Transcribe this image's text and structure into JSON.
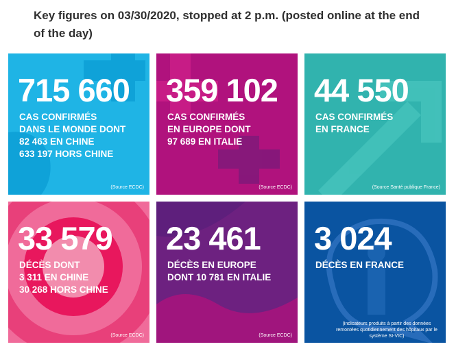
{
  "heading": "Key figures on 03/30/2020, stopped at 2 p.m. (posted online at the end of the day)",
  "cards": [
    {
      "number": "715 660",
      "lines": [
        "CAS CONFIRMÉS",
        "DANS LE MONDE DONT",
        "82 463 EN CHINE",
        "633 197 HORS CHINE"
      ],
      "source": "(Source ECDC)",
      "color": "#1fb4e5"
    },
    {
      "number": "359 102",
      "lines": [
        "CAS CONFIRMÉS",
        "EN EUROPE DONT",
        "97 689 EN ITALIE"
      ],
      "source": "(Source ECDC)",
      "color": "#b0127d"
    },
    {
      "number": "44 550",
      "lines": [
        "CAS CONFIRMÉS",
        "EN FRANCE"
      ],
      "source": "(Source Santé publique France)",
      "color": "#31b3ae"
    },
    {
      "number": "33 579",
      "lines": [
        "DÉCÈS DONT",
        "3 311 EN CHINE",
        "30 268 HORS CHINE"
      ],
      "source": "(Source ECDC)",
      "color": "#f06b9a"
    },
    {
      "number": "23 461",
      "lines": [
        "DÉCÈS EN EUROPE",
        "DONT 10 781 EN ITALIE"
      ],
      "source": "(Source ECDC)",
      "color": "#6d2180"
    },
    {
      "number": "3 024",
      "lines": [
        "DÉCÈS EN FRANCE"
      ],
      "source": "(indicateurs produits à partir des données remontées quotidiennement des hôpitaux par le système SI-VIC)",
      "color": "#0a54a1"
    }
  ]
}
